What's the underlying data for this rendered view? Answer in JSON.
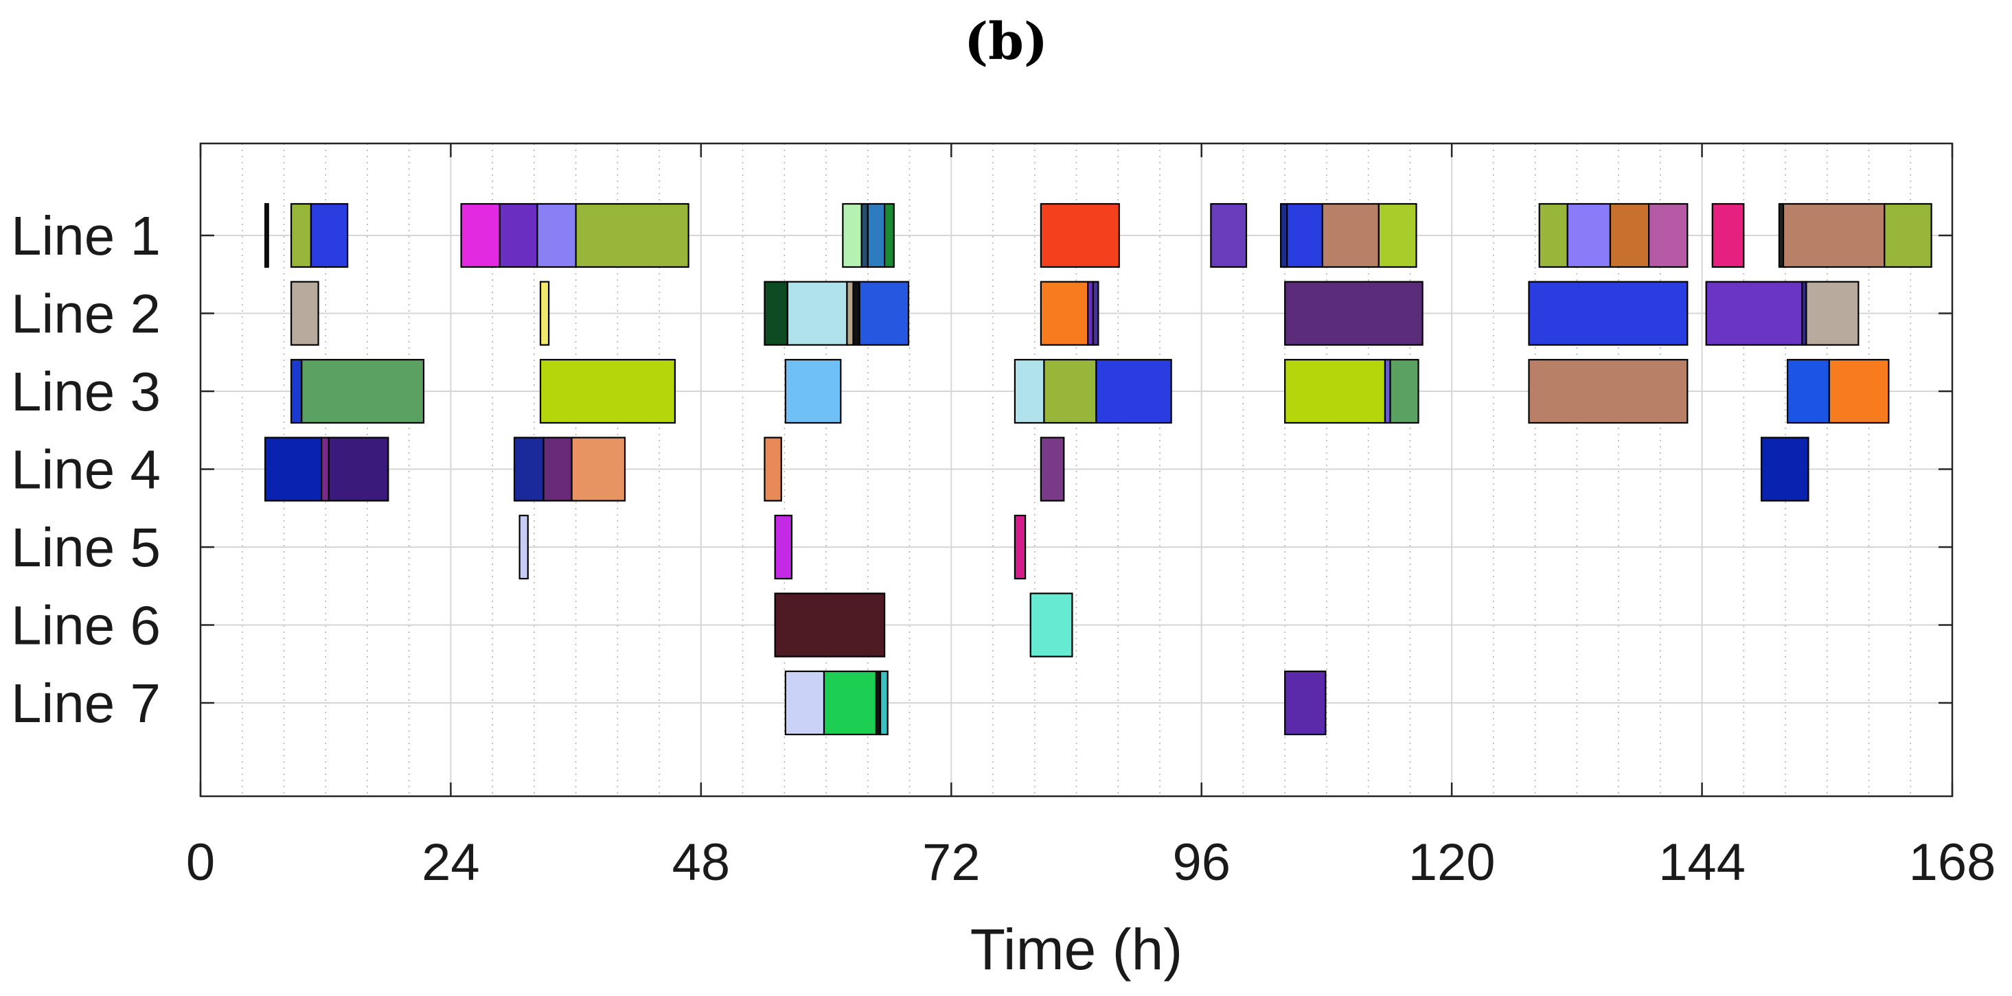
{
  "panel_label": "(b)",
  "chart_data": {
    "type": "gantt",
    "title": "(b)",
    "xlabel": "Time (h)",
    "ylabel": "",
    "xlim": [
      0,
      168
    ],
    "xticks": [
      0,
      24,
      48,
      72,
      96,
      120,
      144,
      168
    ],
    "xtick_labels": [
      "0",
      "24",
      "48",
      "72",
      "96",
      "120",
      "144",
      "168"
    ],
    "minor_tick_step": 4,
    "grid": true,
    "lines": [
      "Line 1",
      "Line 2",
      "Line 3",
      "Line 4",
      "Line 5",
      "Line 6",
      "Line 7"
    ],
    "tasks": [
      {
        "line": 0,
        "start": 6.2,
        "end": 6.5,
        "color": "#111111"
      },
      {
        "line": 0,
        "start": 8.7,
        "end": 10.6,
        "color": "#98b73a"
      },
      {
        "line": 0,
        "start": 10.6,
        "end": 14.1,
        "color": "#2a3de0"
      },
      {
        "line": 0,
        "start": 25.0,
        "end": 28.7,
        "color": "#e22ae0"
      },
      {
        "line": 0,
        "start": 28.7,
        "end": 32.3,
        "color": "#6a2fc0"
      },
      {
        "line": 0,
        "start": 32.3,
        "end": 36.0,
        "color": "#8a80f6"
      },
      {
        "line": 0,
        "start": 36.0,
        "end": 46.8,
        "color": "#98b73a"
      },
      {
        "line": 0,
        "start": 61.6,
        "end": 63.4,
        "color": "#b5f2b1"
      },
      {
        "line": 0,
        "start": 63.4,
        "end": 64.0,
        "color": "#264f6e"
      },
      {
        "line": 0,
        "start": 64.0,
        "end": 65.6,
        "color": "#2d7cbf"
      },
      {
        "line": 0,
        "start": 65.6,
        "end": 66.5,
        "color": "#1a8a34"
      },
      {
        "line": 0,
        "start": 80.6,
        "end": 88.1,
        "color": "#f5401d"
      },
      {
        "line": 0,
        "start": 96.9,
        "end": 100.3,
        "color": "#6a3dbc"
      },
      {
        "line": 0,
        "start": 103.6,
        "end": 104.2,
        "color": "#1a2d8a"
      },
      {
        "line": 0,
        "start": 104.2,
        "end": 107.6,
        "color": "#2a3de0"
      },
      {
        "line": 0,
        "start": 107.6,
        "end": 113.0,
        "color": "#b88066"
      },
      {
        "line": 0,
        "start": 113.0,
        "end": 116.6,
        "color": "#a8cc2a"
      },
      {
        "line": 0,
        "start": 128.4,
        "end": 131.1,
        "color": "#98b73a"
      },
      {
        "line": 0,
        "start": 131.1,
        "end": 135.2,
        "color": "#8a7cf8"
      },
      {
        "line": 0,
        "start": 135.2,
        "end": 138.9,
        "color": "#c8702e"
      },
      {
        "line": 0,
        "start": 138.9,
        "end": 142.6,
        "color": "#b65aa6"
      },
      {
        "line": 0,
        "start": 145.0,
        "end": 148.0,
        "color": "#e5207f"
      },
      {
        "line": 0,
        "start": 151.4,
        "end": 151.8,
        "color": "#222222"
      },
      {
        "line": 0,
        "start": 151.8,
        "end": 161.5,
        "color": "#b88066"
      },
      {
        "line": 0,
        "start": 161.5,
        "end": 166.0,
        "color": "#98b73a"
      },
      {
        "line": 1,
        "start": 8.7,
        "end": 11.3,
        "color": "#b8aa9c"
      },
      {
        "line": 1,
        "start": 32.6,
        "end": 33.4,
        "color": "#f2ea6a"
      },
      {
        "line": 1,
        "start": 54.1,
        "end": 56.3,
        "color": "#0e4a22"
      },
      {
        "line": 1,
        "start": 56.3,
        "end": 62.0,
        "color": "#b0e2ec"
      },
      {
        "line": 1,
        "start": 62.0,
        "end": 62.6,
        "color": "#b8a68a"
      },
      {
        "line": 1,
        "start": 62.6,
        "end": 63.2,
        "color": "#111111"
      },
      {
        "line": 1,
        "start": 63.2,
        "end": 67.9,
        "color": "#2557e0"
      },
      {
        "line": 1,
        "start": 80.6,
        "end": 85.1,
        "color": "#f87c1d"
      },
      {
        "line": 1,
        "start": 85.1,
        "end": 85.6,
        "color": "#6a2fc0"
      },
      {
        "line": 1,
        "start": 85.6,
        "end": 86.1,
        "color": "#4a2fa0"
      },
      {
        "line": 1,
        "start": 104.0,
        "end": 117.2,
        "color": "#5a2c7a"
      },
      {
        "line": 1,
        "start": 127.4,
        "end": 142.6,
        "color": "#2a3de0"
      },
      {
        "line": 1,
        "start": 144.4,
        "end": 153.6,
        "color": "#6a35c4"
      },
      {
        "line": 1,
        "start": 153.6,
        "end": 154.0,
        "color": "#3a2a8a"
      },
      {
        "line": 1,
        "start": 154.0,
        "end": 159.0,
        "color": "#b8aa9c"
      },
      {
        "line": 2,
        "start": 8.7,
        "end": 9.7,
        "color": "#1a3ad0"
      },
      {
        "line": 2,
        "start": 9.7,
        "end": 21.4,
        "color": "#5ba262"
      },
      {
        "line": 2,
        "start": 32.6,
        "end": 45.5,
        "color": "#b5d60a"
      },
      {
        "line": 2,
        "start": 56.1,
        "end": 61.4,
        "color": "#70c0f8"
      },
      {
        "line": 2,
        "start": 78.1,
        "end": 80.9,
        "color": "#b0e2ec"
      },
      {
        "line": 2,
        "start": 80.9,
        "end": 85.9,
        "color": "#98b73a"
      },
      {
        "line": 2,
        "start": 85.9,
        "end": 93.1,
        "color": "#2a3de0"
      },
      {
        "line": 2,
        "start": 104.0,
        "end": 113.6,
        "color": "#b5d60a"
      },
      {
        "line": 2,
        "start": 113.6,
        "end": 114.1,
        "color": "#6a5acd"
      },
      {
        "line": 2,
        "start": 114.1,
        "end": 116.8,
        "color": "#5ba262"
      },
      {
        "line": 2,
        "start": 127.4,
        "end": 142.6,
        "color": "#b88066"
      },
      {
        "line": 2,
        "start": 152.2,
        "end": 156.2,
        "color": "#1a55e5"
      },
      {
        "line": 2,
        "start": 156.2,
        "end": 161.9,
        "color": "#f87c1d"
      },
      {
        "line": 3,
        "start": 6.2,
        "end": 11.6,
        "color": "#0a22b0"
      },
      {
        "line": 3,
        "start": 11.6,
        "end": 12.3,
        "color": "#7a2a8a"
      },
      {
        "line": 3,
        "start": 12.3,
        "end": 18.0,
        "color": "#3a1a7a"
      },
      {
        "line": 3,
        "start": 30.1,
        "end": 32.9,
        "color": "#1a2a9a"
      },
      {
        "line": 3,
        "start": 32.9,
        "end": 35.6,
        "color": "#6a2a7a"
      },
      {
        "line": 3,
        "start": 35.6,
        "end": 40.7,
        "color": "#e89462"
      },
      {
        "line": 3,
        "start": 54.1,
        "end": 55.7,
        "color": "#e88a58"
      },
      {
        "line": 3,
        "start": 80.6,
        "end": 82.8,
        "color": "#7a3a8a"
      },
      {
        "line": 3,
        "start": 149.7,
        "end": 154.2,
        "color": "#0a22b0"
      },
      {
        "line": 4,
        "start": 30.6,
        "end": 31.4,
        "color": "#c6ccf6"
      },
      {
        "line": 4,
        "start": 55.1,
        "end": 56.7,
        "color": "#c42ae6"
      },
      {
        "line": 4,
        "start": 78.1,
        "end": 79.1,
        "color": "#d41d8a"
      },
      {
        "line": 5,
        "start": 55.1,
        "end": 65.6,
        "color": "#4e1a24"
      },
      {
        "line": 5,
        "start": 79.6,
        "end": 83.6,
        "color": "#66ead2"
      },
      {
        "line": 6,
        "start": 56.1,
        "end": 59.8,
        "color": "#cad2f8"
      },
      {
        "line": 6,
        "start": 59.8,
        "end": 64.8,
        "color": "#1cce52"
      },
      {
        "line": 6,
        "start": 64.8,
        "end": 65.2,
        "color": "#111111"
      },
      {
        "line": 6,
        "start": 65.2,
        "end": 65.9,
        "color": "#3ac2c2"
      },
      {
        "line": 6,
        "start": 104.0,
        "end": 107.9,
        "color": "#5a2aaa"
      }
    ]
  }
}
